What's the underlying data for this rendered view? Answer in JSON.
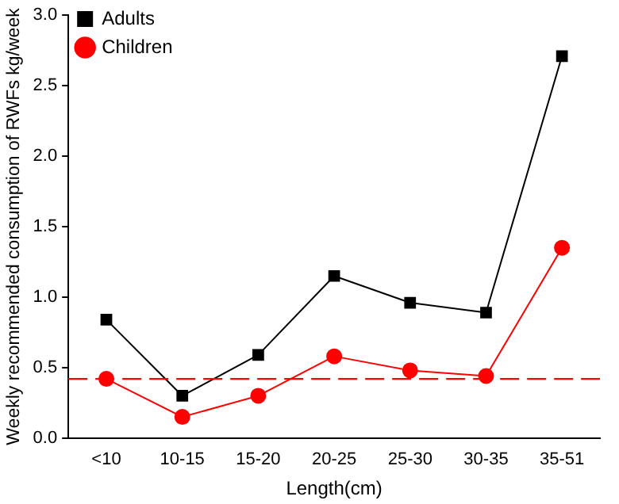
{
  "chart_data": {
    "type": "line",
    "xlabel": "Length(cm)",
    "ylabel": "Weekly recommended consumption of RWFs kg/week",
    "categories": [
      "<10",
      "10-15",
      "15-20",
      "20-25",
      "25-30",
      "30-35",
      "35-51"
    ],
    "series": [
      {
        "name": "Adults",
        "color": "#000000",
        "marker": "square",
        "values": [
          0.84,
          0.3,
          0.59,
          1.15,
          0.96,
          0.89,
          2.71
        ]
      },
      {
        "name": "Children",
        "color": "#ff0000",
        "marker": "circle",
        "values": [
          0.42,
          0.15,
          0.3,
          0.58,
          0.48,
          0.44,
          1.35
        ]
      }
    ],
    "ylim": [
      0,
      3
    ],
    "yticks": [
      {
        "value": 0,
        "label": "0.0"
      },
      {
        "value": 0.5,
        "label": "0.5"
      },
      {
        "value": 1,
        "label": "1.0"
      },
      {
        "value": 1.5,
        "label": "1.5"
      },
      {
        "value": 2,
        "label": "2.0"
      },
      {
        "value": 2.5,
        "label": "2.5"
      },
      {
        "value": 3,
        "label": "3.0"
      }
    ],
    "ref_lines": [
      {
        "axis": "y",
        "value": 0.42,
        "color": "#ff0000",
        "line_style": "dashed"
      }
    ],
    "grid": false,
    "legend": "top left"
  }
}
